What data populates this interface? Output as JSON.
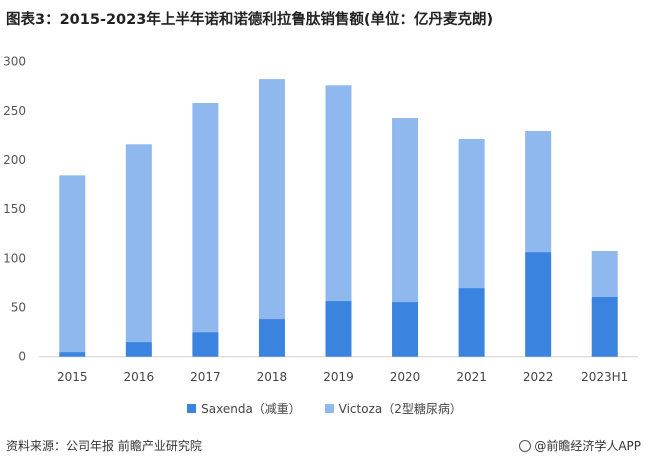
{
  "title": "图表3：2015-2023年上半年诺和诺德利拉鲁肽销售额(单位：亿丹麦克朗)",
  "source": "资料来源：公司年报 前瞻产业研究院",
  "brand": "@前瞻经济学人APP",
  "chart_data": {
    "type": "bar",
    "stacked": true,
    "title": "图表3：2015-2023年上半年诺和诺德利拉鲁肽销售额(单位：亿丹麦克朗)",
    "categories": [
      "2015",
      "2016",
      "2017",
      "2018",
      "2019",
      "2020",
      "2021",
      "2022",
      "2023H1"
    ],
    "series": [
      {
        "name": "Saxenda（减重）",
        "color": "#3a84e0",
        "values": [
          4.7,
          14.9,
          25.0,
          38.3,
          56.6,
          55.6,
          69.8,
          106.4,
          60.7
        ]
      },
      {
        "name": "Victoza（2型糖尿病）",
        "color": "#8fb8ee",
        "values": [
          179.7,
          201.1,
          233.0,
          244.0,
          219.4,
          187.1,
          151.6,
          123.1,
          46.8
        ]
      }
    ],
    "ylim": [
      0,
      300
    ],
    "yticks": [
      "0",
      "50",
      "100",
      "150",
      "200",
      "250",
      "300"
    ],
    "grid": false,
    "legend": "bottom"
  }
}
